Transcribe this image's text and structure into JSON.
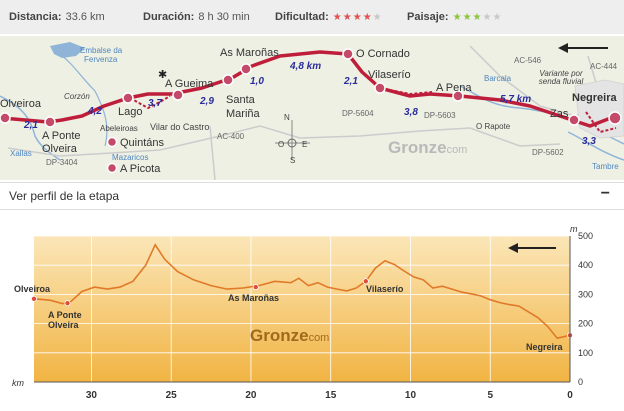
{
  "stats": {
    "distance_label": "Distancia:",
    "distance_value": "33.6 km",
    "duration_label": "Duración:",
    "duration_value": "8 h 30 min",
    "difficulty_label": "Dificultad:",
    "difficulty_level": 4,
    "difficulty_max": 5,
    "difficulty_color": "#e05252",
    "landscape_label": "Paisaje:",
    "landscape_level": 3,
    "landscape_max": 5,
    "landscape_color": "#8cc63f"
  },
  "map": {
    "places": {
      "olveiroa": "Olveiroa",
      "a_ponte": "A Ponte",
      "olveira": "Olveira",
      "lago": "Lago",
      "quintans": "Quintáns",
      "a_picota": "A Picota",
      "a_gueima": "A Gueima",
      "santa_marina_1": "Santa",
      "santa_marina_2": "Mariña",
      "as_marinas": "As Maroñas",
      "o_cornado": "O Cornado",
      "vilaserio": "Vilaserío",
      "a_pena": "A Pena",
      "zas": "Zas",
      "negreira": "Negreira"
    },
    "minor": {
      "corzon": "Corzón",
      "abeleiroas": "Abeleiroas",
      "vilar_do_castro": "Vilar do Castro",
      "o_rapote": "O Rapote",
      "variante": "Variante por senda fluvial"
    },
    "water": {
      "embalse_1": "Embalse da",
      "embalse_2": "Fervenza",
      "xallas": "Xallas",
      "mazaricos": "Mazaricos",
      "barcala": "Barcala",
      "tambre": "Tambre"
    },
    "roads": {
      "dp3404": "DP-3404",
      "ac400": "AC-400",
      "dp5604": "DP-5604",
      "dp5603": "DP-5603",
      "ac546": "AC-546",
      "ac444": "AC-444",
      "dp5602": "DP-5602"
    },
    "segments": {
      "s1": "2,1",
      "s2": "4,2",
      "s3": "3,7",
      "s4": "2,9",
      "s5": "1,0",
      "s6": "4,8 km",
      "s7": "2,1",
      "s8": "3,8",
      "s9": "5,7 km",
      "s10": "3,3"
    },
    "watermark": "Gronze",
    "watermark_suffix": "com",
    "compass": {
      "n": "N",
      "s": "S",
      "e": "E",
      "w": "O"
    }
  },
  "toggle": {
    "label": "Ver perfil de la etapa",
    "button": "−"
  },
  "profile": {
    "labels": {
      "olveiroa": "Olveiroa",
      "a_ponte_1": "A Ponte",
      "a_ponte_2": "Olveira",
      "as_marinas": "As Maroñas",
      "vilaserio": "Vilaserío",
      "negreira": "Negreira"
    },
    "watermark": "Gronze",
    "watermark_suffix": "com",
    "x_unit": "km",
    "y_unit": "m",
    "x_ticks": [
      "30",
      "25",
      "20",
      "15",
      "10",
      "5",
      "0"
    ],
    "y_ticks": [
      "500",
      "400",
      "300",
      "200",
      "100",
      "0"
    ]
  },
  "chart_data": {
    "type": "area",
    "x_label": "km",
    "y_label": "m",
    "xlim": [
      33.6,
      0
    ],
    "ylim": [
      0,
      500
    ],
    "x": [
      33.6,
      32.6,
      31.8,
      31.3,
      30.6,
      29.8,
      29.0,
      28.2,
      27.4,
      26.6,
      26.0,
      25.4,
      24.6,
      23.6,
      22.5,
      21.5,
      20.5,
      19.5,
      18.5,
      17.5,
      17.0,
      16.4,
      15.8,
      15.2,
      14.6,
      14.0,
      13.4,
      12.8,
      12.2,
      11.6,
      11.0,
      10.4,
      9.8,
      9.2,
      8.6,
      8.0,
      7.4,
      6.8,
      6.2,
      5.6,
      5.0,
      4.4,
      3.8,
      3.2,
      2.6,
      2.0,
      1.4,
      0.8,
      0
    ],
    "y": [
      285,
      280,
      268,
      275,
      310,
      325,
      318,
      325,
      345,
      400,
      470,
      420,
      378,
      350,
      330,
      318,
      322,
      330,
      345,
      340,
      355,
      330,
      340,
      325,
      318,
      312,
      322,
      345,
      390,
      415,
      402,
      380,
      360,
      350,
      322,
      328,
      318,
      308,
      302,
      295,
      282,
      272,
      265,
      260,
      240,
      220,
      190,
      150,
      160
    ],
    "labels": [
      {
        "name": "Olveiroa",
        "km": 33.6,
        "alt": 285
      },
      {
        "name": "A Ponte Olveira",
        "km": 31.5,
        "alt": 270
      },
      {
        "name": "As Maroñas",
        "km": 19.7,
        "alt": 325
      },
      {
        "name": "Vilaserío",
        "km": 12.8,
        "alt": 345
      },
      {
        "name": "Negreira",
        "km": 0,
        "alt": 160
      }
    ],
    "area_color": "#f4c066",
    "line_color": "#e07a28"
  }
}
